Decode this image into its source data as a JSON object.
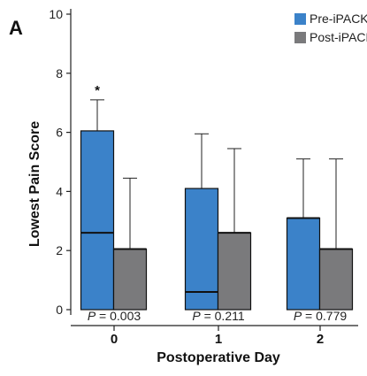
{
  "panel_label": "A",
  "chart_data": {
    "type": "box",
    "xlabel": "Postoperative Day",
    "ylabel": "Lowest Pain Score",
    "ylim": [
      0,
      10
    ],
    "yticks": [
      0,
      2,
      4,
      6,
      8,
      10
    ],
    "categories": [
      "0",
      "1",
      "2"
    ],
    "legend_position": "top-right",
    "series": [
      {
        "name": "Pre-iPACK",
        "color": "#3b82c9",
        "boxes": [
          {
            "q1": 0,
            "median": 2.6,
            "q3": 6.05,
            "whisker_high": 7.1
          },
          {
            "q1": 0,
            "median": 0.6,
            "q3": 4.1,
            "whisker_high": 5.95
          },
          {
            "q1": 0,
            "median": 3.1,
            "q3": 3.1,
            "whisker_high": 5.1
          }
        ]
      },
      {
        "name": "Post-iPACK",
        "color": "#7a7a7c",
        "boxes": [
          {
            "q1": 0,
            "median": 2.05,
            "q3": 2.05,
            "whisker_high": 4.45
          },
          {
            "q1": 0,
            "median": 2.6,
            "q3": 2.6,
            "whisker_high": 5.45
          },
          {
            "q1": 0,
            "median": 2.05,
            "q3": 2.05,
            "whisker_high": 5.1
          }
        ]
      }
    ],
    "annotations": [
      {
        "category": "0",
        "series": "Pre-iPACK",
        "text": "*"
      }
    ],
    "p_values": [
      {
        "prefix": "P",
        "text": " = 0.003"
      },
      {
        "prefix": "P",
        "text": " = 0.211"
      },
      {
        "prefix": "P",
        "text": " = 0.779"
      }
    ]
  }
}
